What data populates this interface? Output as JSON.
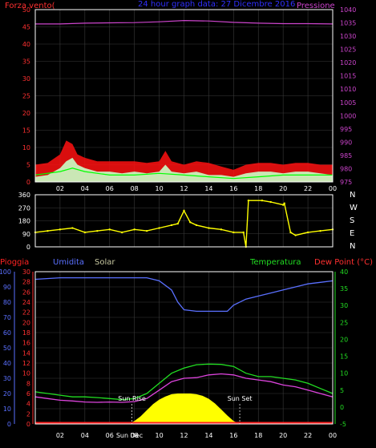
{
  "colors": {
    "background": "#000000",
    "grid": "#3a3a3a",
    "frame": "#ffffff",
    "wind_avg": "#ff1111",
    "wind_gust": "#c8ffc8",
    "wind_small": "#00ff00",
    "pressure": "#cc44cc",
    "title": "#3030ff",
    "direction": "#ffff00",
    "rain": "#ff2222",
    "humidity": "#5a70ff",
    "solar": "#ffff00",
    "temperature": "#22dd22",
    "dewpoint": "#dd44dd",
    "axis_red": "#ff3030",
    "axis_blue": "#5a70ff",
    "axis_green": "#22dd22",
    "sun_text": "#ffffff"
  },
  "x_tick_labels": [
    "02",
    "04",
    "06",
    "08",
    "10",
    "12",
    "14",
    "16",
    "18",
    "20",
    "22",
    "00"
  ],
  "chart_data": [
    {
      "type": "line",
      "title": "24 hour graph data: 27 Dicembre 2016",
      "left_axis": {
        "label": "Forza vento(",
        "range": [
          0,
          50
        ],
        "ticks": [
          0,
          5,
          10,
          15,
          20,
          25,
          30,
          35,
          40,
          45,
          50
        ]
      },
      "right_axis": {
        "label": "Pressione",
        "range": [
          975,
          1040
        ],
        "ticks": [
          975,
          980,
          985,
          990,
          995,
          1000,
          1005,
          1010,
          1015,
          1020,
          1025,
          1030,
          1035,
          1040
        ]
      },
      "series": [
        {
          "role": "pressure",
          "axis": "right",
          "x": [
            0,
            2,
            4,
            6,
            8,
            10,
            12,
            14,
            16,
            18,
            20,
            22,
            24
          ],
          "y": [
            1034.6,
            1034.6,
            1034.9,
            1035.0,
            1035.1,
            1035.4,
            1035.9,
            1035.7,
            1035.2,
            1034.9,
            1034.7,
            1034.7,
            1034.6
          ]
        },
        {
          "role": "wind_avg",
          "axis": "left",
          "x": [
            0,
            1,
            2,
            2.5,
            3,
            3.4,
            4,
            5,
            6,
            7,
            8,
            9,
            10,
            10.5,
            11,
            12,
            13,
            14,
            15,
            16,
            17,
            18,
            19,
            20,
            21,
            22,
            23,
            24
          ],
          "y": [
            5,
            5.5,
            8,
            12,
            11,
            8,
            7,
            6,
            6,
            6,
            6,
            5.5,
            6,
            9,
            6,
            5,
            6,
            5.5,
            4.5,
            3.5,
            5,
            5.5,
            5.5,
            5,
            5.5,
            5.5,
            5,
            5
          ]
        },
        {
          "role": "wind_gust",
          "axis": "left",
          "x": [
            0,
            1,
            2,
            2.5,
            3,
            3.4,
            4,
            5,
            6,
            7,
            8,
            9,
            10,
            10.5,
            11,
            12,
            13,
            14,
            15,
            16,
            17,
            18,
            19,
            20,
            21,
            22,
            23,
            24
          ],
          "y": [
            1.5,
            2,
            4,
            6,
            7,
            5,
            4,
            3,
            3,
            2.5,
            3,
            2.5,
            3,
            5,
            3,
            2.5,
            3,
            2,
            2,
            1.5,
            2.5,
            3,
            3,
            2.5,
            3,
            3,
            2.5,
            2
          ]
        },
        {
          "role": "wind_small",
          "axis": "left",
          "x": [
            0,
            2,
            3,
            4,
            6,
            8,
            10,
            12,
            14,
            16,
            18,
            20,
            22,
            24
          ],
          "y": [
            2,
            3,
            4,
            3,
            2,
            2,
            2.5,
            2,
            1.5,
            1,
            1.5,
            2,
            2,
            2
          ]
        }
      ]
    },
    {
      "type": "scatter",
      "right_labels": [
        "N",
        "W",
        "S",
        "E",
        "N"
      ],
      "left_axis": {
        "range": [
          0,
          360
        ],
        "ticks": [
          0,
          90,
          180,
          270,
          360
        ]
      },
      "series": [
        {
          "role": "direction",
          "x": [
            0,
            1,
            2,
            3,
            4,
            5,
            6,
            7,
            8,
            9,
            10,
            11,
            11.5,
            12,
            12.5,
            13,
            14,
            15,
            16,
            16.8,
            17,
            17.2,
            18.3,
            19,
            20,
            20.1,
            20.6,
            21,
            22,
            23,
            24
          ],
          "y": [
            100,
            110,
            120,
            130,
            100,
            110,
            120,
            100,
            120,
            110,
            130,
            150,
            160,
            250,
            170,
            150,
            130,
            120,
            100,
            100,
            0,
            320,
            320,
            310,
            290,
            300,
            100,
            80,
            100,
            110,
            120
          ]
        }
      ]
    },
    {
      "type": "line",
      "left_axes": [
        {
          "label": "Pioggia",
          "range": [
            0,
            100
          ],
          "ticks": [
            0,
            10,
            20,
            30,
            40,
            50,
            60,
            70,
            80,
            90,
            100
          ]
        },
        {
          "label": "Umidita",
          "range": [
            0,
            30
          ],
          "ticks": [
            0,
            2,
            4,
            6,
            8,
            10,
            12,
            14,
            16,
            18,
            20,
            22,
            24,
            26,
            28,
            30
          ]
        },
        {
          "label": "Solar"
        }
      ],
      "right_axes": [
        {
          "label": "Temperatura"
        },
        {
          "label": "Dew Point (°C)",
          "range": [
            -5,
            40
          ],
          "ticks": [
            -5,
            0,
            5,
            10,
            15,
            20,
            25,
            30,
            35,
            40
          ]
        }
      ],
      "annotations": [
        {
          "text": "Sun Rise",
          "x": 7.8
        },
        {
          "text": "Sun Set",
          "x": 16.5
        },
        {
          "text": "Sun Dec",
          "x": 7.6
        }
      ],
      "series": [
        {
          "role": "humidity",
          "axis": "pioggia",
          "x": [
            0,
            2,
            4,
            6,
            8,
            9,
            10,
            11,
            11.5,
            12,
            13,
            14,
            15,
            15.5,
            16,
            17,
            18,
            19,
            20,
            21,
            22,
            23,
            24
          ],
          "y": [
            95,
            96,
            96,
            96,
            96,
            96,
            94,
            88,
            80,
            75,
            74,
            74,
            74,
            74,
            78,
            82,
            84,
            86,
            88,
            90,
            92,
            93,
            94
          ]
        },
        {
          "role": "temperature",
          "axis": "temp",
          "x": [
            0,
            1,
            2,
            3,
            4,
            5,
            6,
            7,
            8,
            9,
            10,
            11,
            12,
            13,
            14,
            15,
            16,
            17,
            18,
            19,
            20,
            21,
            22,
            23,
            24
          ],
          "y": [
            4.5,
            4,
            3.5,
            3,
            3,
            2.8,
            2.5,
            2.2,
            2.5,
            4,
            7,
            10,
            11.5,
            12.5,
            12.7,
            12.6,
            12,
            10,
            9,
            9,
            8.5,
            8,
            7,
            5.5,
            4
          ]
        },
        {
          "role": "dewpoint",
          "axis": "temp",
          "x": [
            0,
            1,
            2,
            3,
            4,
            5,
            6,
            7,
            8,
            9,
            10,
            11,
            12,
            13,
            14,
            15,
            16,
            17,
            18,
            19,
            20,
            21,
            22,
            23,
            24
          ],
          "y": [
            3,
            2.5,
            2,
            1.8,
            1.5,
            1.4,
            1.5,
            1.4,
            1.6,
            2.5,
            5,
            7.5,
            8.5,
            8.7,
            9.5,
            9.8,
            9.5,
            8.5,
            8,
            7.5,
            6.5,
            6,
            5,
            4,
            3
          ]
        },
        {
          "role": "solar",
          "axis": "pioggia",
          "x": [
            7.5,
            8,
            8.5,
            9,
            9.5,
            10,
            10.5,
            11,
            11.5,
            12,
            12.5,
            13,
            13.5,
            14,
            14.5,
            15,
            15.5,
            16,
            16.5
          ],
          "y": [
            0,
            2,
            5,
            9,
            13,
            16,
            18,
            19.5,
            20,
            20,
            20,
            19.5,
            18.5,
            16.5,
            13.5,
            9.5,
            5.5,
            2,
            0
          ]
        },
        {
          "role": "rain",
          "axis": "pioggia",
          "x": [
            0,
            24
          ],
          "y": [
            0.5,
            0.5
          ]
        }
      ]
    }
  ],
  "labels": {
    "forza_vento": "Forza vento(",
    "title": "24 hour graph data: 27 Dicembre 2016",
    "pressione": "Pressione",
    "pioggia": "Pioggia",
    "umidita": "Umidita",
    "solar": "Solar",
    "temperatura": "Temperatura",
    "dew_point": "Dew Point (°C)",
    "sun_rise": "Sun Rise",
    "sun_set": "Sun Set",
    "sun_dec": "Sun Dec"
  }
}
